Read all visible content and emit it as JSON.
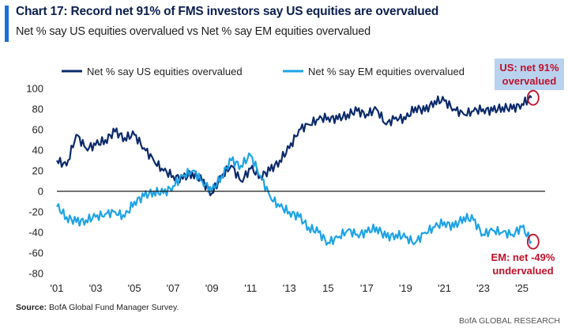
{
  "header": {
    "title": "Chart 17: Record net 91% of FMS investors say US equities are overvalued",
    "subtitle": "Net % say US equities overvalued vs Net % say EM equities overvalued"
  },
  "footer": {
    "source_label": "Source:",
    "source_text": " BofA Global Fund Manager Survey.",
    "brand": "BofA GLOBAL RESEARCH"
  },
  "colors": {
    "us": "#0b2a6b",
    "em": "#1ea3e6",
    "annotation": "#c0102a",
    "zero_line": "#1f1f1f"
  },
  "chart_data": {
    "type": "line",
    "title": "Chart 17: Record net 91% of FMS investors say US equities are overvalued",
    "subtitle": "Net % say US equities overvalued vs Net % say EM equities overvalued",
    "xlabel": "",
    "ylabel": "",
    "xlim": [
      2001,
      2026.2
    ],
    "ylim": [
      -80,
      100
    ],
    "yticks": [
      100,
      80,
      60,
      40,
      20,
      0,
      -20,
      -40,
      -60,
      -80
    ],
    "xticks": [
      {
        "value": 2001,
        "label": "'01"
      },
      {
        "value": 2003,
        "label": "'03"
      },
      {
        "value": 2005,
        "label": "'05"
      },
      {
        "value": 2007,
        "label": "'07"
      },
      {
        "value": 2009,
        "label": "'09"
      },
      {
        "value": 2011,
        "label": "'11"
      },
      {
        "value": 2013,
        "label": "'13"
      },
      {
        "value": 2015,
        "label": "15"
      },
      {
        "value": 2017,
        "label": "'17"
      },
      {
        "value": 2019,
        "label": "'19"
      },
      {
        "value": 2021,
        "label": "'21"
      },
      {
        "value": 2023,
        "label": "'23"
      },
      {
        "value": 2025,
        "label": "'25"
      }
    ],
    "grid": false,
    "legend": "top",
    "series": [
      {
        "name": "Net % say US equities overvalued",
        "x": [
          2001.0,
          2001.5,
          2002.0,
          2002.5,
          2003.0,
          2003.5,
          2004.0,
          2004.5,
          2005.0,
          2005.5,
          2006.0,
          2006.5,
          2007.0,
          2007.5,
          2008.0,
          2008.5,
          2009.0,
          2009.5,
          2010.0,
          2010.5,
          2011.0,
          2011.5,
          2012.0,
          2012.5,
          2013.0,
          2013.5,
          2014.0,
          2014.5,
          2015.0,
          2015.5,
          2016.0,
          2016.5,
          2017.0,
          2017.5,
          2018.0,
          2018.5,
          2019.0,
          2019.5,
          2020.0,
          2020.5,
          2021.0,
          2021.5,
          2022.0,
          2022.5,
          2023.0,
          2023.5,
          2024.0,
          2024.5,
          2025.0,
          2025.5
        ],
        "values": [
          30,
          25,
          55,
          42,
          45,
          50,
          58,
          52,
          55,
          42,
          30,
          20,
          15,
          12,
          18,
          10,
          -2,
          15,
          25,
          10,
          22,
          15,
          20,
          30,
          42,
          60,
          65,
          70,
          72,
          70,
          75,
          78,
          75,
          80,
          65,
          72,
          70,
          82,
          78,
          88,
          88,
          80,
          75,
          78,
          80,
          78,
          82,
          80,
          85,
          91
        ]
      },
      {
        "name": "Net % say EM equities overvalued",
        "x": [
          2001.0,
          2001.5,
          2002.0,
          2002.5,
          2003.0,
          2003.5,
          2004.0,
          2004.5,
          2005.0,
          2005.5,
          2006.0,
          2006.5,
          2007.0,
          2007.5,
          2008.0,
          2008.5,
          2009.0,
          2009.5,
          2010.0,
          2010.5,
          2011.0,
          2011.5,
          2012.0,
          2012.5,
          2013.0,
          2013.5,
          2014.0,
          2014.5,
          2015.0,
          2015.5,
          2016.0,
          2016.5,
          2017.0,
          2017.5,
          2018.0,
          2018.5,
          2019.0,
          2019.5,
          2020.0,
          2020.5,
          2021.0,
          2021.5,
          2022.0,
          2022.5,
          2023.0,
          2023.5,
          2024.0,
          2024.5,
          2025.0,
          2025.5
        ],
        "values": [
          -15,
          -25,
          -30,
          -28,
          -25,
          -22,
          -20,
          -25,
          -10,
          -5,
          0,
          -2,
          5,
          15,
          20,
          10,
          0,
          15,
          30,
          25,
          35,
          15,
          -5,
          -15,
          -20,
          -25,
          -35,
          -40,
          -50,
          -45,
          -38,
          -42,
          -40,
          -35,
          -45,
          -42,
          -45,
          -50,
          -40,
          -35,
          -30,
          -35,
          -25,
          -28,
          -42,
          -38,
          -40,
          -42,
          -35,
          -49
        ]
      }
    ],
    "annotations": [
      {
        "text_line1": "US: net 91%",
        "text_line2": "overvalued",
        "x": 2025.5,
        "y": 91
      },
      {
        "text_line1": "EM: net -49%",
        "text_line2": "undervalued",
        "x": 2025.5,
        "y": -49
      }
    ]
  }
}
